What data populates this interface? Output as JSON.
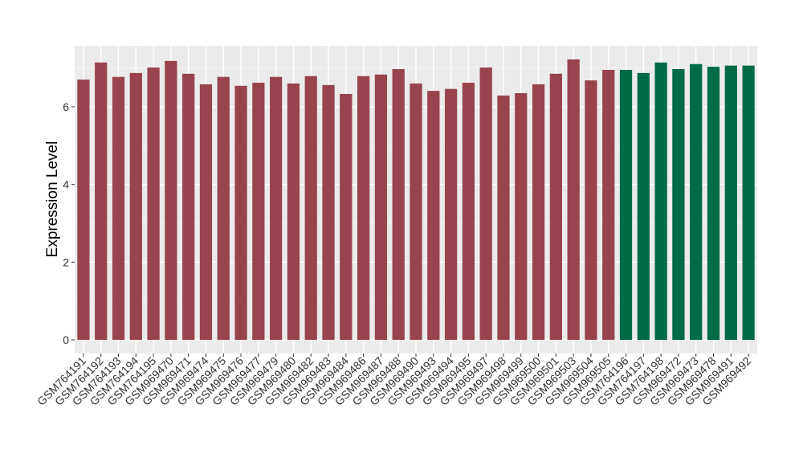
{
  "chart_data": {
    "type": "bar",
    "y_label": "Expression Level",
    "categories": [
      "GSM764191",
      "GSM764192",
      "GSM764193",
      "GSM764194",
      "GSM764195",
      "GSM969470",
      "GSM969471",
      "GSM969474",
      "GSM969475",
      "GSM969476",
      "GSM969477",
      "GSM969479",
      "GSM969480",
      "GSM969482",
      "GSM969483",
      "GSM969484",
      "GSM969486",
      "GSM969487",
      "GSM969488",
      "GSM969490",
      "GSM969493",
      "GSM969494",
      "GSM969495",
      "GSM969497",
      "GSM969498",
      "GSM969499",
      "GSM969500",
      "GSM969501",
      "GSM969503",
      "GSM969504",
      "GSM969505",
      "GSM764196",
      "GSM764197",
      "GSM764198",
      "GSM969472",
      "GSM969473",
      "GSM969478",
      "GSM969491",
      "GSM969492"
    ],
    "values": [
      6.7,
      7.14,
      6.77,
      6.87,
      7.01,
      7.18,
      6.85,
      6.58,
      6.77,
      6.54,
      6.62,
      6.77,
      6.6,
      6.79,
      6.56,
      6.33,
      6.79,
      6.83,
      6.97,
      6.6,
      6.41,
      6.46,
      6.62,
      7.01,
      6.29,
      6.35,
      6.58,
      6.85,
      7.22,
      6.68,
      6.95,
      6.95,
      6.87,
      7.14,
      6.97,
      7.1,
      7.03,
      7.06,
      7.06
    ],
    "colors": [
      "#99434f",
      "#99434f",
      "#99434f",
      "#99434f",
      "#99434f",
      "#99434f",
      "#99434f",
      "#99434f",
      "#99434f",
      "#99434f",
      "#99434f",
      "#99434f",
      "#99434f",
      "#99434f",
      "#99434f",
      "#99434f",
      "#99434f",
      "#99434f",
      "#99434f",
      "#99434f",
      "#99434f",
      "#99434f",
      "#99434f",
      "#99434f",
      "#99434f",
      "#99434f",
      "#99434f",
      "#99434f",
      "#99434f",
      "#99434f",
      "#99434f",
      "#006b45",
      "#006b45",
      "#006b45",
      "#006b45",
      "#006b45",
      "#006b45",
      "#006b45",
      "#006b45"
    ],
    "ylim": [
      -0.35,
      7.57
    ],
    "yticks": [
      0,
      2,
      4,
      6
    ],
    "minor_yticks": [
      1,
      3,
      5,
      7
    ],
    "grid": true
  }
}
